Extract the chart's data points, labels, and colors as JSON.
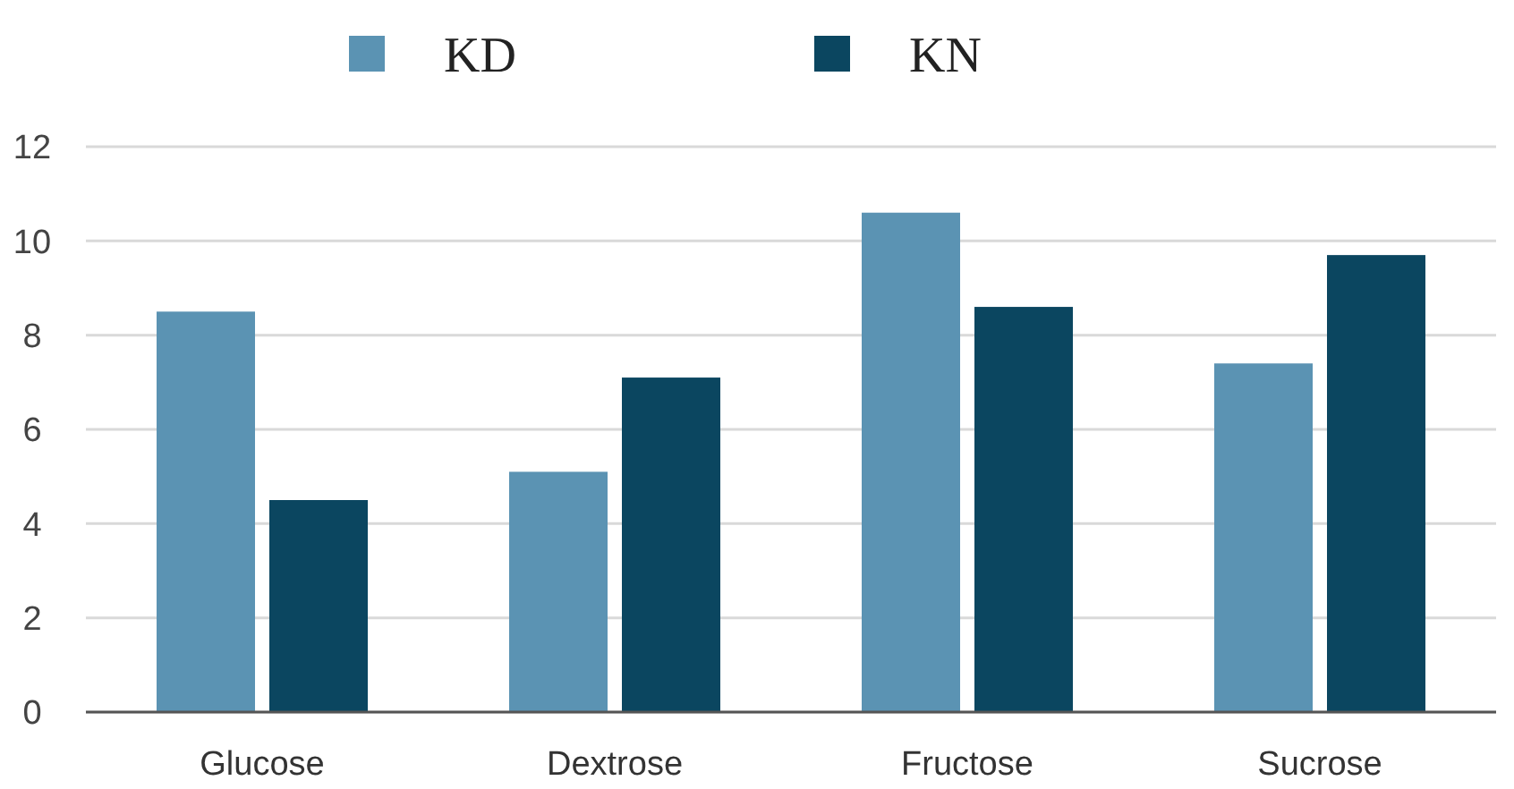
{
  "chart_data": {
    "type": "bar",
    "categories": [
      "Glucose",
      "Dextrose",
      "Fructose",
      "Sucrose"
    ],
    "series": [
      {
        "name": "KD",
        "color": "#5b93b3",
        "values": [
          8.5,
          5.1,
          10.6,
          7.4
        ]
      },
      {
        "name": "KN",
        "color": "#0b4660",
        "values": [
          4.5,
          7.1,
          8.6,
          9.7
        ]
      }
    ],
    "ylim": [
      0,
      12
    ],
    "yticks": [
      0,
      2,
      4,
      6,
      8,
      10,
      12
    ],
    "grid": "y",
    "legend": "top"
  }
}
